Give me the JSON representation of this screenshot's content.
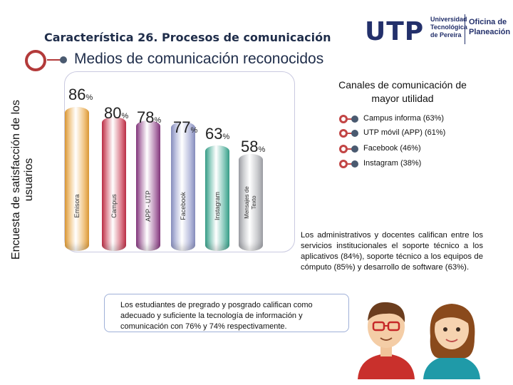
{
  "header": {
    "title": "Característica 26. Procesos de comunicación",
    "subtitle": "Medios de comunicación reconocidos"
  },
  "logo": {
    "mark": "UTP",
    "university_line1": "Universidad",
    "university_line2": "Tecnológica",
    "university_line3": "de Pereira",
    "office_line1": "Oficina de",
    "office_line2": "Planeación"
  },
  "side_label": {
    "line1": "Encuesta de satisfacción de los",
    "line2": "usuarios"
  },
  "colors": {
    "accent_red": "#b33a3a",
    "navy": "#1f2d4a",
    "emisora": "#e8a23a",
    "campus": "#c7324a",
    "app": "#8b3b84",
    "facebook": "#8f96c9",
    "instagram": "#3aa68f",
    "mensajes": "#a5a7ad"
  },
  "chart_data": {
    "type": "bar",
    "categories": [
      "Emisora",
      "Campus",
      "APP - UTP",
      "Facebook",
      "Instagram",
      "Mensajes de Texto"
    ],
    "values": [
      86,
      80,
      78,
      77,
      63,
      58
    ],
    "value_labels": [
      "86",
      "80",
      "78",
      "77",
      "63",
      "58"
    ],
    "unit": "%"
  },
  "channels": {
    "title_line1": "Canales de comunicación de",
    "title_line2": "mayor utilidad",
    "items": [
      {
        "label": "Campus informa (63%)"
      },
      {
        "label": "UTP móvil (APP) (61%)"
      },
      {
        "label": "Facebook (46%)"
      },
      {
        "label": "Instagram (38%)"
      }
    ]
  },
  "notes": {
    "admin": "Los administrativos y docentes califican entre los servicios institucionales el soporte técnico a los aplicativos (84%), soporte técnico a los equipos de cómputo (85%) y desarrollo de software (63%).",
    "students": "Los estudiantes de pregrado y posgrado califican como adecuado y suficiente la tecnología de información y comunicación con 76% y 74% respectivamente."
  }
}
